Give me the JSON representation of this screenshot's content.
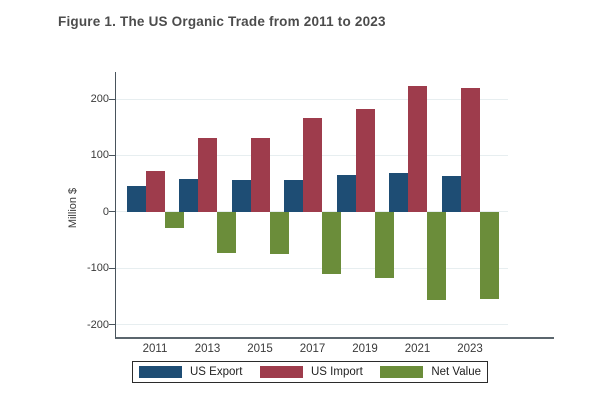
{
  "header": {
    "title": "Figure 1. The US Organic Trade from 2011 to 2023"
  },
  "chart_data": {
    "type": "bar",
    "title": "Figure 1. The US Organic Trade from 2011 to 2023",
    "categories": [
      "2011",
      "2013",
      "2015",
      "2017",
      "2019",
      "2021",
      "2023"
    ],
    "series": [
      {
        "name": "US Export",
        "color": "#1e4d74",
        "values": [
          45,
          58,
          56,
          56,
          66,
          68,
          64
        ]
      },
      {
        "name": "US Import",
        "color": "#9e3c4c",
        "values": [
          73,
          131,
          131,
          166,
          183,
          224,
          219
        ]
      },
      {
        "name": "Net Value",
        "color": "#6b8d3a",
        "values": [
          -28,
          -73,
          -75,
          -110,
          -117,
          -156,
          -155
        ]
      }
    ],
    "xlabel": "",
    "ylabel": "Million $",
    "yticks": [
      200,
      100,
      0,
      -100,
      -200
    ],
    "ylim": [
      -222,
      248
    ],
    "grid": true,
    "grid_color": "#e7eef0",
    "axis_color": "#49545c",
    "text_color": "#3a3a3a",
    "title_color": "#4c4c4c",
    "legend_position": "bottom",
    "legend_border_color": "#2b2b2b"
  }
}
